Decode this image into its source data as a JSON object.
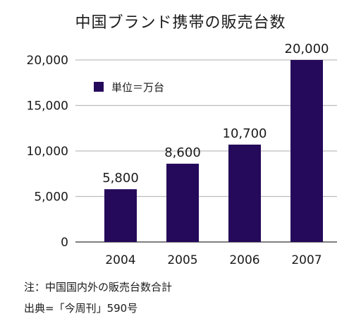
{
  "chart_data": {
    "type": "bar",
    "title": "中国ブランド携帯の販売台数",
    "categories": [
      "2004",
      "2005",
      "2006",
      "2007"
    ],
    "values": [
      5800,
      8600,
      10700,
      20000
    ],
    "data_labels": [
      "5,800",
      "8,600",
      "10,700",
      "20,000"
    ],
    "ylim": [
      0,
      20000
    ],
    "yticks": [
      0,
      5000,
      10000,
      15000,
      20000
    ],
    "ytick_labels": [
      "0",
      "5,000",
      "10,000",
      "15,000",
      "20,000"
    ],
    "grid": true,
    "legend": {
      "label": "単位＝万台",
      "position": "top-left"
    },
    "bar_color": "#25095a",
    "grid_color": "#bdbdbd"
  },
  "footnotes": {
    "note": "注：中国国内外の販売台数合計",
    "source": "出典=「今周刊」590号"
  }
}
